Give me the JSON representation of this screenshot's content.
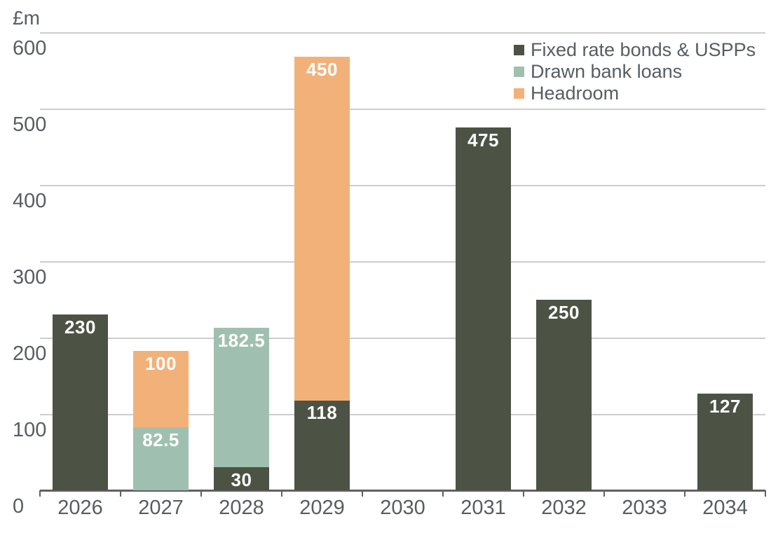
{
  "chart_data": {
    "type": "bar",
    "stacked": true,
    "title": "",
    "ylabel": "£m",
    "xlabel": "",
    "ylim": [
      0,
      600
    ],
    "ytick_interval": 100,
    "ytick_labels": [
      "600",
      "500",
      "400",
      "300",
      "200",
      "100",
      "0"
    ],
    "categories": [
      "2026",
      "2027",
      "2028",
      "2029",
      "2030",
      "2031",
      "2032",
      "2033",
      "2034"
    ],
    "series": [
      {
        "name": "Fixed rate bonds & USPPs",
        "color": "#4c5345",
        "values": [
          230,
          0,
          30,
          118,
          0,
          475,
          250,
          0,
          127
        ]
      },
      {
        "name": "Drawn bank loans",
        "color": "#9fc0b0",
        "values": [
          0,
          82.5,
          182.5,
          0,
          0,
          0,
          0,
          0,
          0
        ]
      },
      {
        "name": "Headroom",
        "color": "#f3b17a",
        "values": [
          0,
          100,
          0,
          450,
          0,
          0,
          0,
          0,
          0
        ]
      }
    ],
    "segment_labels": {
      "2026": [
        "230"
      ],
      "2027": [
        "82.5",
        "100"
      ],
      "2028": [
        "30",
        "182.5"
      ],
      "2029": [
        "118",
        "450"
      ],
      "2031": [
        "475"
      ],
      "2032": [
        "250"
      ],
      "2034": [
        "127"
      ]
    },
    "grid": true,
    "legend_position": "top-right",
    "bar_label_color": "#ffffff"
  },
  "style": {
    "background": "#ffffff",
    "grid_color": "#cdcdcd",
    "axis_color": "#616161",
    "text_color": "#575d61"
  }
}
